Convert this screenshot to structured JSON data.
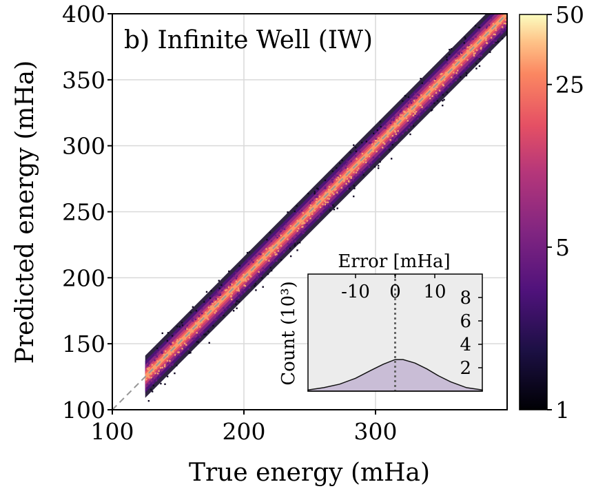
{
  "chart_data": [
    {
      "type": "heatmap",
      "title": "b) Infinite Well (IW)",
      "xlabel": "True energy (mHa)",
      "ylabel": "Predicted energy (mHa)",
      "xlim": [
        100,
        400
      ],
      "ylim": [
        100,
        400
      ],
      "xticks": [
        100,
        200,
        300
      ],
      "yticks": [
        100,
        150,
        200,
        250,
        300,
        350,
        400
      ],
      "grid": true,
      "reference_line": "y = x (dashed gray)",
      "data_range": {
        "x": [
          125,
          400
        ],
        "y": [
          112,
          400
        ]
      },
      "colormap": "magma",
      "colorbar": {
        "scale": "log",
        "min": 1,
        "max": 50,
        "ticks": [
          1,
          5,
          25,
          50
        ]
      }
    },
    {
      "type": "area",
      "xlabel": "Error [mHa]",
      "ylabel": "Count (10³)",
      "xlim": [
        -22,
        22
      ],
      "ylim": [
        0,
        10
      ],
      "xticks": [
        -10,
        0,
        10
      ],
      "yticks": [
        2,
        4,
        6,
        8
      ],
      "zero_line": 0,
      "x": [
        -22,
        -18,
        -14,
        -10,
        -6,
        -3,
        0,
        2,
        5,
        8,
        11,
        14,
        18,
        22
      ],
      "values": [
        0.1,
        0.3,
        0.6,
        1.1,
        1.8,
        2.3,
        2.7,
        2.7,
        2.4,
        1.9,
        1.3,
        0.8,
        0.3,
        0.1
      ]
    }
  ]
}
